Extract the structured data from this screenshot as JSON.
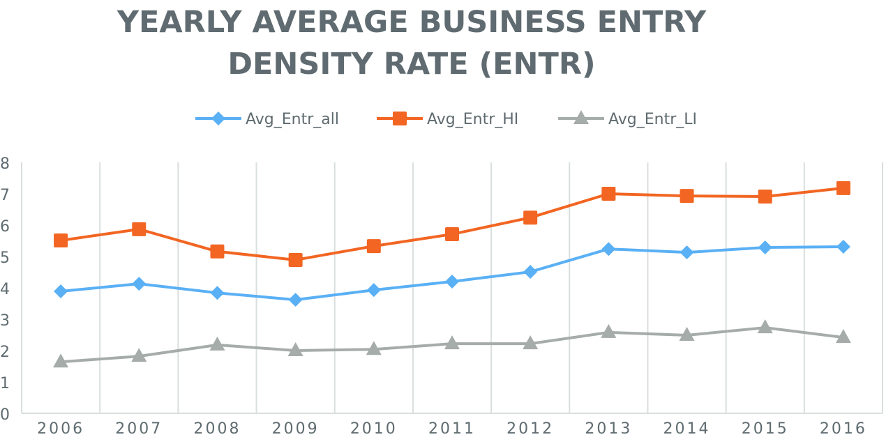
{
  "chart_data": {
    "type": "line",
    "title_lines": [
      "YEARLY AVERAGE BUSINESS ENTRY",
      "DENSITY RATE (ENTR)"
    ],
    "xlabel": "",
    "ylabel": "",
    "categories": [
      "2006",
      "2007",
      "2008",
      "2009",
      "2010",
      "2011",
      "2012",
      "2013",
      "2014",
      "2015",
      "2016"
    ],
    "ylim": [
      0,
      8
    ],
    "yticks": [
      "0",
      "1",
      "2",
      "3",
      "4",
      "5",
      "6",
      "7",
      "8"
    ],
    "grid": "vertical",
    "legend_position": "top",
    "series": [
      {
        "name": "Avg_Entr_all",
        "color": "#5ab0f5",
        "marker": "diamond",
        "values": [
          3.89,
          4.13,
          3.84,
          3.62,
          3.93,
          4.2,
          4.51,
          5.24,
          5.13,
          5.29,
          5.31
        ]
      },
      {
        "name": "Avg_Entr_HI",
        "color": "#f26522",
        "marker": "square",
        "values": [
          5.51,
          5.87,
          5.16,
          4.89,
          5.33,
          5.71,
          6.24,
          7.0,
          6.93,
          6.91,
          7.18
        ]
      },
      {
        "name": "Avg_Entr_LI",
        "color": "#a5aca9",
        "marker": "triangle",
        "values": [
          1.64,
          1.82,
          2.18,
          2.0,
          2.04,
          2.22,
          2.22,
          2.58,
          2.49,
          2.73,
          2.42
        ]
      }
    ]
  }
}
